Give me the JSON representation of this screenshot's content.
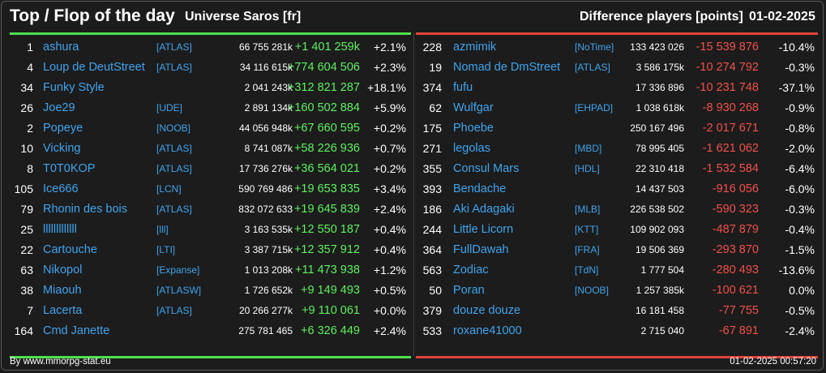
{
  "header": {
    "title": "Top / Flop of the day",
    "server": "Universe Saros [fr]",
    "diff_label": "Difference players [points]",
    "date": "01-02-2025"
  },
  "colors": {
    "positive": "#5ef05e",
    "negative": "#f0504a",
    "name": "#3fa4ee",
    "top_line": "#4fe04f",
    "flop_line": "#e0443c"
  },
  "top": [
    {
      "rank": "1",
      "name": "ashura",
      "tag": "[ATLAS]",
      "total": "66 755 281k",
      "diff": "+1 401 259k",
      "pct": "+2.1%"
    },
    {
      "rank": "4",
      "name": "Loup de DeutStreet",
      "tag": "[ATLAS]",
      "total": "34 116 615k",
      "diff": "+774 604 506",
      "pct": "+2.3%"
    },
    {
      "rank": "34",
      "name": "Funky Style",
      "tag": "",
      "total": "2 041 243k",
      "diff": "+312 821 287",
      "pct": "+18.1%"
    },
    {
      "rank": "26",
      "name": "Joe29",
      "tag": "[UDE]",
      "total": "2 891 134k",
      "diff": "+160 502 884",
      "pct": "+5.9%"
    },
    {
      "rank": "2",
      "name": "Popeye",
      "tag": "[NOOB]",
      "total": "44 056 948k",
      "diff": "+67 660 595",
      "pct": "+0.2%"
    },
    {
      "rank": "10",
      "name": "Vicking",
      "tag": "[ATLAS]",
      "total": "8 741 087k",
      "diff": "+58 226 936",
      "pct": "+0.7%"
    },
    {
      "rank": "8",
      "name": "T0T0KOP",
      "tag": "[ATLAS]",
      "total": "17 736 276k",
      "diff": "+36 564 021",
      "pct": "+0.2%"
    },
    {
      "rank": "105",
      "name": "Ice666",
      "tag": "[LCN]",
      "total": "590 769 486",
      "diff": "+19 653 835",
      "pct": "+3.4%"
    },
    {
      "rank": "79",
      "name": "Rhonin des bois",
      "tag": "[ATLAS]",
      "total": "832 072 633",
      "diff": "+19 645 839",
      "pct": "+2.4%"
    },
    {
      "rank": "25",
      "name": "lllllllllllll",
      "tag": "[lll]",
      "total": "3 163 535k",
      "diff": "+12 550 187",
      "pct": "+0.4%"
    },
    {
      "rank": "22",
      "name": "Cartouche",
      "tag": "[LTI]",
      "total": "3 387 715k",
      "diff": "+12 357 912",
      "pct": "+0.4%"
    },
    {
      "rank": "63",
      "name": "Nikopol",
      "tag": "[Expanse]",
      "total": "1 013 208k",
      "diff": "+11 473 938",
      "pct": "+1.2%"
    },
    {
      "rank": "38",
      "name": "Miaouh",
      "tag": "[ATLASW]",
      "total": "1 726 652k",
      "diff": "+9 149 493",
      "pct": "+0.5%"
    },
    {
      "rank": "7",
      "name": "Lacerta",
      "tag": "[ATLAS]",
      "total": "20 266 277k",
      "diff": "+9 110 061",
      "pct": "+0.0%"
    },
    {
      "rank": "164",
      "name": "Cmd Janette",
      "tag": "",
      "total": "275 781 465",
      "diff": "+6 326 449",
      "pct": "+2.4%"
    }
  ],
  "flop": [
    {
      "rank": "228",
      "name": "azmimik",
      "tag": "[NoTime]",
      "total": "133 423 026",
      "diff": "-15 539 876",
      "pct": "-10.4%"
    },
    {
      "rank": "19",
      "name": "Nomad de DmStreet",
      "tag": "[ATLAS]",
      "total": "3 586 175k",
      "diff": "-10 274 792",
      "pct": "-0.3%"
    },
    {
      "rank": "374",
      "name": "fufu",
      "tag": "",
      "total": "17 336 896",
      "diff": "-10 231 748",
      "pct": "-37.1%"
    },
    {
      "rank": "62",
      "name": "Wulfgar",
      "tag": "[EHPAD]",
      "total": "1 038 618k",
      "diff": "-8 930 268",
      "pct": "-0.9%"
    },
    {
      "rank": "175",
      "name": "Phoebe",
      "tag": "",
      "total": "250 167 496",
      "diff": "-2 017 671",
      "pct": "-0.8%"
    },
    {
      "rank": "271",
      "name": "legolas",
      "tag": "[MBD]",
      "total": "78 995 405",
      "diff": "-1 621 062",
      "pct": "-2.0%"
    },
    {
      "rank": "355",
      "name": "Consul Mars",
      "tag": "[HDL]",
      "total": "22 310 418",
      "diff": "-1 532 584",
      "pct": "-6.4%"
    },
    {
      "rank": "393",
      "name": "Bendache",
      "tag": "",
      "total": "14 437 503",
      "diff": "-916 056",
      "pct": "-6.0%"
    },
    {
      "rank": "186",
      "name": "Aki Adagaki",
      "tag": "[MLB]",
      "total": "226 538 502",
      "diff": "-590 323",
      "pct": "-0.3%"
    },
    {
      "rank": "244",
      "name": "Little Licorn",
      "tag": "[KTT]",
      "total": "109 902 093",
      "diff": "-487 879",
      "pct": "-0.4%"
    },
    {
      "rank": "364",
      "name": "FullDawah",
      "tag": "[FRA]",
      "total": "19 506 369",
      "diff": "-293 870",
      "pct": "-1.5%"
    },
    {
      "rank": "563",
      "name": "Zodiac",
      "tag": "[TdN]",
      "total": "1 777 504",
      "diff": "-280 493",
      "pct": "-13.6%"
    },
    {
      "rank": "50",
      "name": "Poran",
      "tag": "[NOOB]",
      "total": "1 257 385k",
      "diff": "-100 621",
      "pct": "0.0%"
    },
    {
      "rank": "379",
      "name": "douze douze",
      "tag": "",
      "total": "16 181 458",
      "diff": "-77 755",
      "pct": "-0.5%"
    },
    {
      "rank": "533",
      "name": "roxane41000",
      "tag": "",
      "total": "2 715 040",
      "diff": "-67 891",
      "pct": "-2.4%"
    }
  ],
  "footer": {
    "source": "By www.mmorpg-stat.eu",
    "timestamp": "01-02-2025 00:57:20"
  }
}
